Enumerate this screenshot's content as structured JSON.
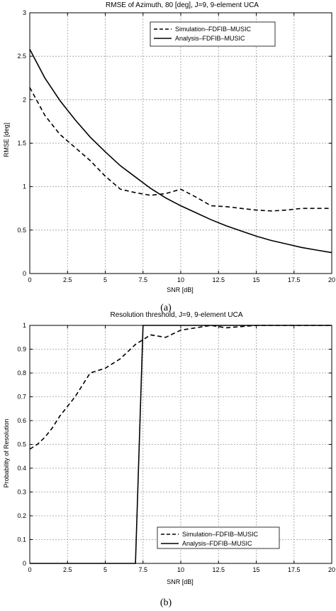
{
  "chart_data": [
    {
      "type": "line",
      "title": "RMSE of Azimuth, 80 [deg], J=9, 9-element UCA",
      "xlabel": "SNR [dB]",
      "ylabel": "RMSE [deg]",
      "xlim": [
        0,
        20
      ],
      "ylim": [
        0,
        3
      ],
      "xticks": [
        0,
        2.5,
        5,
        7.5,
        10,
        12.5,
        15,
        17.5,
        20
      ],
      "yticks": [
        0,
        0.5,
        1,
        1.5,
        2,
        2.5,
        3
      ],
      "grid": true,
      "legend": "top-right",
      "caption": "(a)",
      "series": [
        {
          "name": "Simulation–FDFIB–MUSIC",
          "style": "dashed",
          "x": [
            0,
            1,
            2,
            3,
            4,
            5,
            6,
            7,
            8,
            9,
            10,
            11,
            12,
            13,
            14,
            15,
            16,
            17,
            18,
            19,
            20
          ],
          "y": [
            2.14,
            1.82,
            1.6,
            1.45,
            1.3,
            1.12,
            0.97,
            0.93,
            0.9,
            0.92,
            0.97,
            0.88,
            0.78,
            0.77,
            0.75,
            0.73,
            0.72,
            0.73,
            0.75,
            0.75,
            0.75
          ]
        },
        {
          "name": "Analysis–FDFIB–MUSIC",
          "style": "solid",
          "x": [
            0,
            1,
            2,
            3,
            4,
            5,
            6,
            7,
            8,
            9,
            10,
            11,
            12,
            13,
            14,
            15,
            16,
            17,
            18,
            19,
            20
          ],
          "y": [
            2.58,
            2.25,
            1.99,
            1.77,
            1.57,
            1.4,
            1.24,
            1.11,
            0.98,
            0.87,
            0.78,
            0.7,
            0.62,
            0.55,
            0.49,
            0.43,
            0.38,
            0.34,
            0.3,
            0.27,
            0.24
          ]
        }
      ]
    },
    {
      "type": "line",
      "title": "Resolution threshold, J=9, 9-element UCA",
      "xlabel": "SNR [dB]",
      "ylabel": "Probability of Resolution",
      "xlim": [
        0,
        20
      ],
      "ylim": [
        0,
        1
      ],
      "xticks": [
        0,
        2.5,
        5,
        7.5,
        10,
        12.5,
        15,
        17.5,
        20
      ],
      "yticks": [
        0,
        0.1,
        0.2,
        0.3,
        0.4,
        0.5,
        0.6,
        0.7,
        0.8,
        0.9,
        1
      ],
      "grid": true,
      "legend": "bottom-right",
      "caption": "(b)",
      "series": [
        {
          "name": "Simulation–FDFIB–MUSIC",
          "style": "dashed",
          "x": [
            0,
            0.5,
            1,
            1.5,
            2,
            2.5,
            3,
            3.5,
            4,
            5,
            6,
            7,
            7.5,
            8,
            9,
            10,
            11,
            12,
            13,
            14,
            15,
            16,
            17,
            18,
            19,
            20
          ],
          "y": [
            0.48,
            0.5,
            0.53,
            0.57,
            0.62,
            0.66,
            0.7,
            0.75,
            0.8,
            0.82,
            0.86,
            0.92,
            0.94,
            0.96,
            0.95,
            0.98,
            0.99,
            1.0,
            0.99,
            0.995,
            1.0,
            1.0,
            1.0,
            1.0,
            1.0,
            1.0
          ]
        },
        {
          "name": "Analysis–FDFIB–MUSIC",
          "style": "solid",
          "x": [
            0,
            7.0,
            7.5,
            20
          ],
          "y": [
            0,
            0,
            1,
            1
          ]
        }
      ]
    }
  ]
}
